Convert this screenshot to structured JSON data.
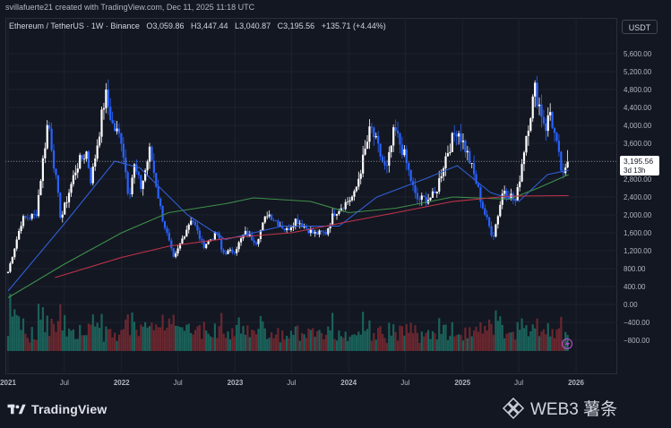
{
  "header": {
    "creator_note": "svillafuerte21 created with TradingView.com, Dec 11, 2025 11:18 UTC",
    "symbol": "Ethereum / TetherUS · 1W · Binance",
    "ohlc": {
      "open_label": "O",
      "open": "3,059.86",
      "high_label": "H",
      "high": "3,447.44",
      "low_label": "L",
      "low": "3,040.87",
      "close_label": "C",
      "close": "3,195.56",
      "change": "+135.71 (+4.44%)"
    }
  },
  "price_axis": {
    "currency": "USDT",
    "current_price": "3,195.56",
    "countdown": "3d 13h"
  },
  "footer": {
    "brand": "TradingView",
    "watermark": "WEB3 薯条"
  },
  "colors": {
    "background": "#131722",
    "candle_up": "#ffffff",
    "candle_down": "#2962ff",
    "ma_blue": "#2f5fd6",
    "ma_green": "#3f8f4a",
    "ma_red": "#c2334a",
    "volume_up": "#1d6e64",
    "volume_down": "#7a2a31"
  },
  "chart_data": {
    "type": "candlestick",
    "y_ticks": [
      "5,600.00",
      "5,200.00",
      "4,800.00",
      "4,400.00",
      "4,000.00",
      "3,600.00",
      "3,200.00",
      "2,800.00",
      "2,400.00",
      "2,000.00",
      "1,600.00",
      "1,200.00",
      "800.00",
      "400.00",
      "0.00",
      "−400.00",
      "−800.00"
    ],
    "x_ticks": [
      "2021",
      "Jul",
      "2022",
      "Jul",
      "2023",
      "Jul",
      "2024",
      "Jul",
      "2025",
      "Jul",
      "2026"
    ],
    "ylim": [
      -1000,
      5950
    ],
    "price_path": [
      [
        "2021-01-01",
        730
      ],
      [
        "2021-02-15",
        1900
      ],
      [
        "2021-04-01",
        2000
      ],
      [
        "2021-05-10",
        4150
      ],
      [
        "2021-06-20",
        1900
      ],
      [
        "2021-08-10",
        3100
      ],
      [
        "2021-09-10",
        3400
      ],
      [
        "2021-09-25",
        2750
      ],
      [
        "2021-11-10",
        4700
      ],
      [
        "2021-12-05",
        3950
      ],
      [
        "2022-01-01",
        3700
      ],
      [
        "2022-01-24",
        2400
      ],
      [
        "2022-02-10",
        3100
      ],
      [
        "2022-03-05",
        2600
      ],
      [
        "2022-04-02",
        3450
      ],
      [
        "2022-05-10",
        2000
      ],
      [
        "2022-06-18",
        1000
      ],
      [
        "2022-07-20",
        1550
      ],
      [
        "2022-08-14",
        1950
      ],
      [
        "2022-09-20",
        1300
      ],
      [
        "2022-11-05",
        1600
      ],
      [
        "2022-11-20",
        1150
      ],
      [
        "2022-12-31",
        1200
      ],
      [
        "2023-02-01",
        1600
      ],
      [
        "2023-03-10",
        1400
      ],
      [
        "2023-04-15",
        2050
      ],
      [
        "2023-06-15",
        1650
      ],
      [
        "2023-07-15",
        1900
      ],
      [
        "2023-09-10",
        1580
      ],
      [
        "2023-10-20",
        1600
      ],
      [
        "2023-11-15",
        2050
      ],
      [
        "2023-12-28",
        2300
      ],
      [
        "2024-01-20",
        2450
      ],
      [
        "2024-03-12",
        3950
      ],
      [
        "2024-05-01",
        2950
      ],
      [
        "2024-05-27",
        3900
      ],
      [
        "2024-06-25",
        3400
      ],
      [
        "2024-08-05",
        2350
      ],
      [
        "2024-09-10",
        2350
      ],
      [
        "2024-10-05",
        2450
      ],
      [
        "2024-11-10",
        3350
      ],
      [
        "2024-12-15",
        3950
      ],
      [
        "2025-01-20",
        3300
      ],
      [
        "2025-02-15",
        2700
      ],
      [
        "2025-03-10",
        2100
      ],
      [
        "2025-04-09",
        1500
      ],
      [
        "2025-05-13",
        2600
      ],
      [
        "2025-06-22",
        2300
      ],
      [
        "2025-07-25",
        3800
      ],
      [
        "2025-08-22",
        4800
      ],
      [
        "2025-09-25",
        3950
      ],
      [
        "2025-10-10",
        4300
      ],
      [
        "2025-11-20",
        2800
      ],
      [
        "2025-12-08",
        3195.56
      ]
    ],
    "moving_averages": [
      {
        "color": "blue",
        "values": [
          [
            "2021-01-01",
            300
          ],
          [
            "2021-07-01",
            1800
          ],
          [
            "2021-12-10",
            3200
          ],
          [
            "2022-03-01",
            3050
          ],
          [
            "2022-08-01",
            2000
          ],
          [
            "2022-12-01",
            1450
          ],
          [
            "2023-06-01",
            1750
          ],
          [
            "2023-12-01",
            1750
          ],
          [
            "2024-04-01",
            2400
          ],
          [
            "2024-09-01",
            2800
          ],
          [
            "2024-12-15",
            3100
          ],
          [
            "2025-04-01",
            2500
          ],
          [
            "2025-07-01",
            2300
          ],
          [
            "2025-10-01",
            2900
          ],
          [
            "2025-12-08",
            3000
          ]
        ]
      },
      {
        "color": "green",
        "values": [
          [
            "2021-01-01",
            150
          ],
          [
            "2021-07-01",
            900
          ],
          [
            "2022-01-01",
            1600
          ],
          [
            "2022-06-01",
            2050
          ],
          [
            "2022-12-01",
            2250
          ],
          [
            "2023-03-01",
            2380
          ],
          [
            "2023-09-01",
            2300
          ],
          [
            "2024-01-01",
            2050
          ],
          [
            "2024-06-01",
            2150
          ],
          [
            "2024-12-01",
            2400
          ],
          [
            "2025-06-01",
            2350
          ],
          [
            "2025-09-01",
            2600
          ],
          [
            "2025-12-08",
            2900
          ]
        ]
      },
      {
        "color": "red",
        "values": [
          [
            "2021-06-01",
            600
          ],
          [
            "2022-01-01",
            1050
          ],
          [
            "2022-06-01",
            1300
          ],
          [
            "2023-01-01",
            1500
          ],
          [
            "2023-07-01",
            1600
          ],
          [
            "2024-01-01",
            1850
          ],
          [
            "2024-06-01",
            2050
          ],
          [
            "2024-12-01",
            2300
          ],
          [
            "2025-06-01",
            2420
          ],
          [
            "2025-12-08",
            2430
          ]
        ]
      }
    ]
  }
}
